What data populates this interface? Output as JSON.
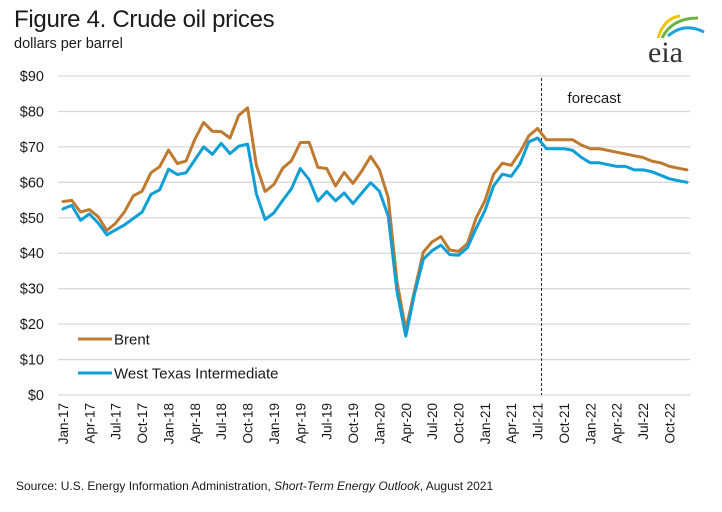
{
  "header": {
    "title": "Figure 4. Crude oil prices",
    "subtitle": "dollars per barrel",
    "logo_text": "eia"
  },
  "footer": {
    "source_prefix": "Source: U.S. Energy Information Administration, ",
    "source_italic": "Short-Term Energy Outlook",
    "source_suffix": ", August 2021"
  },
  "chart_data": {
    "type": "line",
    "title": "Figure 4. Crude oil prices",
    "subtitle": "dollars per barrel",
    "xlabel": "",
    "ylabel": "dollars per barrel",
    "ylim": [
      0,
      90
    ],
    "yticks": [
      0,
      10,
      20,
      30,
      40,
      50,
      60,
      70,
      80,
      90
    ],
    "ytick_labels": [
      "$0",
      "$10",
      "$20",
      "$30",
      "$40",
      "$50",
      "$60",
      "$70",
      "$80",
      "$90"
    ],
    "grid": true,
    "legend_position": "bottom-left",
    "x_start": "Jan-17",
    "x_end": "Dec-22",
    "xtick_labels": [
      "Jan-17",
      "Apr-17",
      "Jul-17",
      "Oct-17",
      "Jan-18",
      "Apr-18",
      "Jul-18",
      "Oct-18",
      "Jan-19",
      "Apr-19",
      "Jul-19",
      "Oct-19",
      "Jan-20",
      "Apr-20",
      "Jul-20",
      "Oct-20",
      "Jan-21",
      "Apr-21",
      "Jul-21",
      "Oct-21",
      "Jan-22",
      "Apr-22",
      "Jul-22",
      "Oct-22"
    ],
    "xtick_interval_months": 3,
    "forecast": {
      "label": "forecast",
      "start_after": "Jul-21"
    },
    "series": [
      {
        "name": "Brent",
        "color": "#C07A30",
        "values": [
          54.6,
          54.9,
          51.6,
          52.3,
          50.3,
          46.4,
          48.5,
          51.7,
          56.2,
          57.5,
          62.7,
          64.4,
          69.1,
          65.3,
          66.0,
          72.1,
          76.9,
          74.4,
          74.3,
          72.5,
          78.9,
          81.0,
          64.8,
          57.4,
          59.4,
          64.0,
          66.1,
          71.2,
          71.3,
          64.2,
          63.9,
          59.0,
          62.8,
          59.7,
          63.2,
          67.3,
          63.6,
          55.7,
          32.0,
          18.4,
          29.4,
          40.3,
          43.2,
          44.7,
          40.9,
          40.5,
          42.7,
          49.9,
          54.8,
          62.3,
          65.4,
          64.8,
          68.5,
          73.1,
          75.2,
          72.0,
          72.0,
          72.0,
          72.0,
          70.5,
          69.5,
          69.5,
          69.0,
          68.5,
          68.0,
          67.5,
          67.0,
          66.0,
          65.5,
          64.5,
          64.0,
          63.5
        ]
      },
      {
        "name": "West Texas Intermediate",
        "color": "#0F9ED5",
        "values": [
          52.5,
          53.5,
          49.3,
          51.1,
          48.5,
          45.2,
          46.6,
          48.0,
          49.8,
          51.6,
          56.6,
          57.9,
          63.7,
          62.2,
          62.7,
          66.3,
          70.0,
          67.9,
          71.0,
          68.1,
          70.2,
          70.8,
          56.7,
          49.5,
          51.4,
          54.9,
          58.2,
          63.9,
          60.8,
          54.7,
          57.4,
          54.8,
          57.0,
          54.0,
          57.0,
          59.9,
          57.5,
          50.5,
          29.2,
          16.6,
          28.5,
          38.3,
          40.7,
          42.3,
          39.6,
          39.4,
          41.5,
          47.0,
          52.0,
          59.0,
          62.3,
          61.7,
          65.2,
          71.4,
          72.5,
          69.5,
          69.5,
          69.5,
          69.0,
          67.0,
          65.5,
          65.5,
          65.0,
          64.5,
          64.5,
          63.5,
          63.5,
          63.0,
          62.0,
          61.0,
          60.5,
          60.0
        ]
      }
    ]
  }
}
